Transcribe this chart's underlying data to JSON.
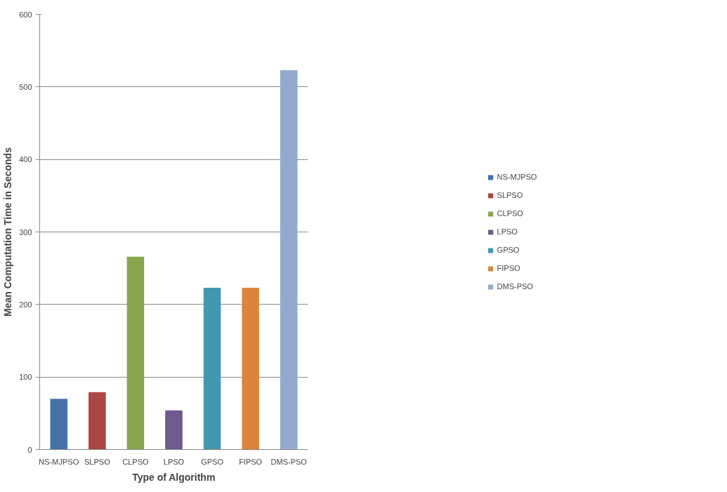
{
  "chart_data": {
    "type": "bar",
    "xlabel": "Type of Algorithm",
    "ylabel": "Mean Computation Time in Seconds",
    "categories": [
      "NS-MJPSO",
      "SLPSO",
      "CLPSO",
      "LPSO",
      "GPSO",
      "FIPSO",
      "DMS-PSO"
    ],
    "series": [
      {
        "name": "NS-MJPSO",
        "color": "#4572a7",
        "values": [
          70,
          null,
          null,
          null,
          null,
          null,
          null
        ]
      },
      {
        "name": "SLPSO",
        "color": "#aa4643",
        "values": [
          null,
          79,
          null,
          null,
          null,
          null,
          null
        ]
      },
      {
        "name": "CLPSO",
        "color": "#89a54e",
        "values": [
          null,
          null,
          266,
          null,
          null,
          null,
          null
        ]
      },
      {
        "name": "LPSO",
        "color": "#71588f",
        "values": [
          null,
          null,
          null,
          54,
          null,
          null,
          null
        ]
      },
      {
        "name": "GPSO",
        "color": "#4198af",
        "values": [
          null,
          null,
          null,
          null,
          223,
          null,
          null
        ]
      },
      {
        "name": "FIPSO",
        "color": "#db843d",
        "values": [
          null,
          null,
          null,
          null,
          null,
          223,
          null
        ]
      },
      {
        "name": "DMS-PSO",
        "color": "#93a9cf",
        "values": [
          null,
          null,
          null,
          null,
          null,
          null,
          523
        ]
      }
    ],
    "ylim": [
      0,
      600
    ],
    "yticks": [
      0,
      100,
      200,
      300,
      400,
      500,
      600
    ],
    "grid": "y",
    "legend": "right"
  }
}
